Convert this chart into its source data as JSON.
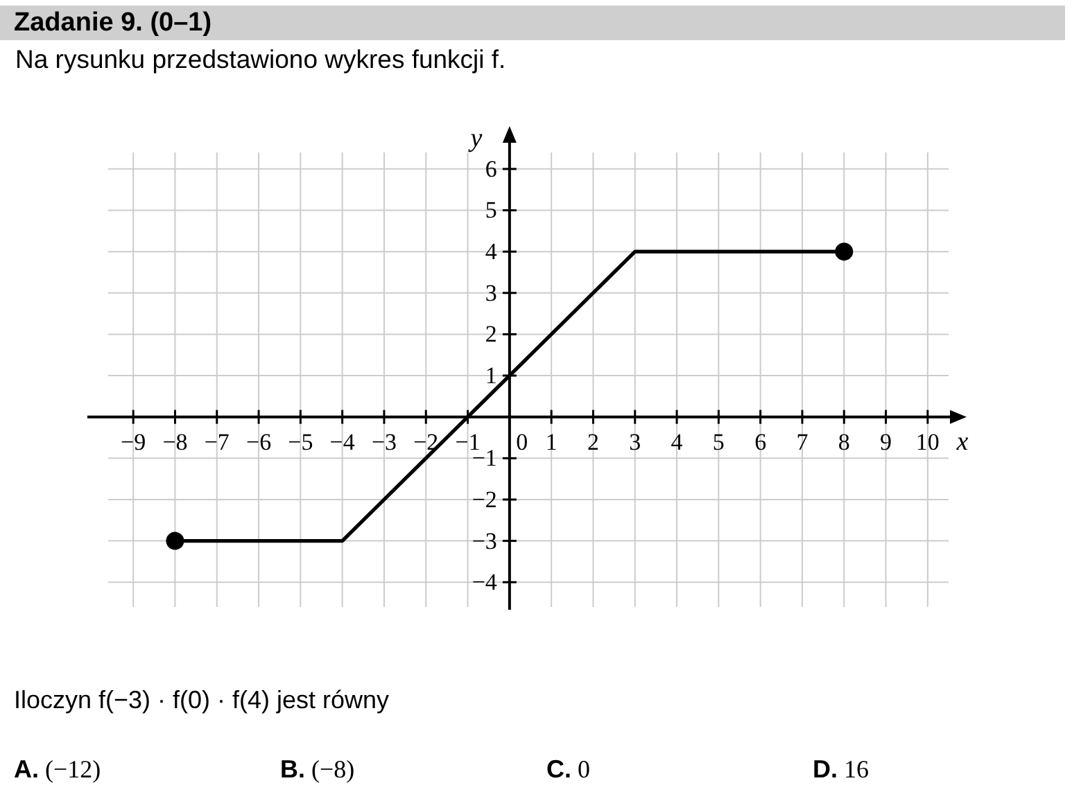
{
  "chart_data": {
    "type": "line",
    "title": "Zadanie 9. (0–1)",
    "subtitle": "Na rysunku przedstawiono wykres funkcji f.",
    "xlabel": "x",
    "ylabel": "y",
    "annotations": [
      "Iloczyn f(−3) · f(0) · f(4) jest równy",
      "A. (−12)",
      "B. (−8)",
      "C. 0",
      "D. 16"
    ],
    "series": [
      {
        "x": [
          -8,
          -4,
          -1,
          3,
          8
        ],
        "values": [
          -3,
          -3,
          0,
          4,
          4
        ],
        "color": "#000000",
        "marker": "none"
      },
      {
        "type": "scatter",
        "x": [
          -8,
          8
        ],
        "values": [
          -3,
          4
        ],
        "color": "#000000",
        "marker": "circle"
      }
    ],
    "xlim": [
      -9.6,
      10.5
    ],
    "ylim": [
      -4.6,
      6.4
    ],
    "xticks": [
      {
        "value": -9,
        "label": "−9"
      },
      {
        "value": -8,
        "label": "−8"
      },
      {
        "value": -7,
        "label": "−7"
      },
      {
        "value": -6,
        "label": "−6"
      },
      {
        "value": -5,
        "label": "−5"
      },
      {
        "value": -4,
        "label": "−4"
      },
      {
        "value": -3,
        "label": "−3"
      },
      {
        "value": -2,
        "label": "−2"
      },
      {
        "value": -1,
        "label": "−1"
      },
      0,
      1,
      2,
      3,
      4,
      5,
      6,
      7,
      8,
      9,
      10
    ],
    "yticks": [
      {
        "value": -4,
        "label": "−4"
      },
      {
        "value": -3,
        "label": "−3"
      },
      {
        "value": -2,
        "label": "−2"
      },
      {
        "value": -1,
        "label": "−1"
      },
      1,
      2,
      3,
      4,
      5,
      6
    ],
    "grid": true,
    "line_style": "solid"
  }
}
